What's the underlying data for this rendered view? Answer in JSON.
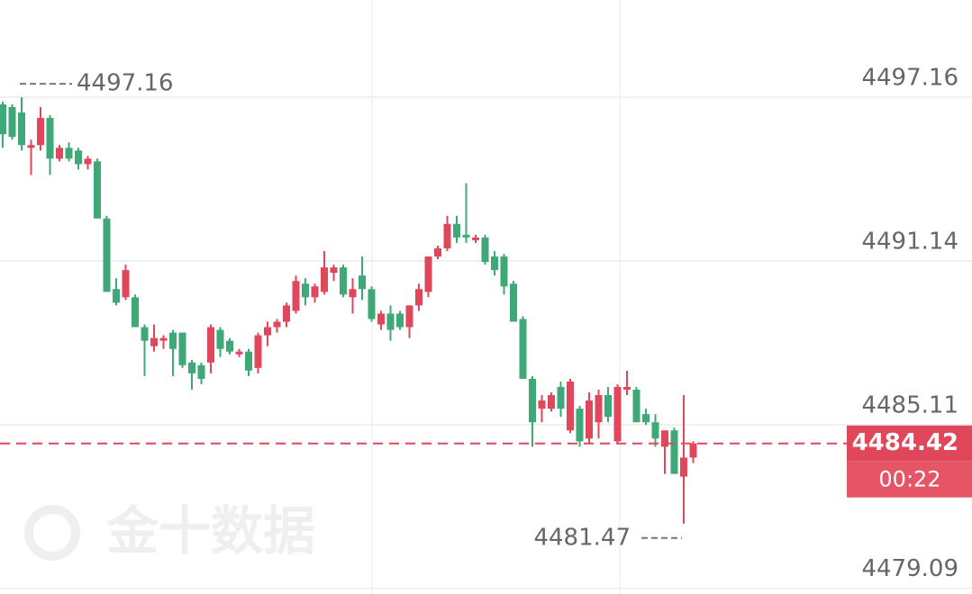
{
  "chart_data": {
    "type": "candlestick",
    "open": [
      4496.9,
      4496.8,
      4496.6,
      4495.3,
      4495.4,
      4496.4,
      4494.9,
      4495.3,
      4495.2,
      4494.7,
      4494.8,
      4492.7,
      4490.1,
      4489.8,
      4489.8,
      4488.7,
      4488.0,
      4488.2,
      4488.5,
      4488.5,
      4487.4,
      4487.3,
      4487.4,
      4488.6,
      4488.2,
      4487.7,
      4487.8,
      4487.2,
      4488.4,
      4488.7,
      4488.9,
      4489.3,
      4490.3,
      4489.8,
      4490.0,
      4490.7,
      4490.9,
      4489.8,
      4490.6,
      4490.1,
      4488.8,
      4489.2,
      4489.2,
      4488.7,
      4489.5,
      4490.0,
      4491.3,
      4491.6,
      4492.5,
      4492.1,
      4491.9,
      4492.0,
      4491.3,
      4491.3,
      4490.3,
      4489.0,
      4486.8,
      4485.7,
      4485.7,
      4486.5,
      4484.9,
      4485.7,
      4484.6,
      4485.2,
      4486.2,
      4484.5,
      4486.4,
      4486.4,
      4485.5,
      4485.2,
      4484.3,
      4484.9,
      4483.2,
      4483.9
    ],
    "high": [
      4497.0,
      4496.9,
      4497.16,
      4495.6,
      4496.8,
      4496.5,
      4495.4,
      4495.5,
      4495.3,
      4495.0,
      4494.9,
      4492.8,
      4490.5,
      4491.0,
      4489.9,
      4488.8,
      4488.8,
      4488.4,
      4488.6,
      4488.5,
      4487.5,
      4487.4,
      4488.8,
      4488.7,
      4488.3,
      4487.9,
      4487.9,
      4488.5,
      4488.9,
      4489.0,
      4489.6,
      4490.6,
      4490.5,
      4490.3,
      4491.5,
      4491.0,
      4491.0,
      4490.5,
      4491.3,
      4490.2,
      4489.3,
      4489.5,
      4489.3,
      4489.5,
      4490.3,
      4491.3,
      4491.7,
      4492.8,
      4492.8,
      4494.0,
      4492.1,
      4492.1,
      4491.5,
      4491.4,
      4490.4,
      4489.1,
      4486.9,
      4486.2,
      4486.3,
      4486.7,
      4486.8,
      4485.8,
      4486.3,
      4486.4,
      4486.5,
      4486.6,
      4487.1,
      4486.5,
      4485.7,
      4485.5,
      4484.9,
      4485.0,
      4486.2,
      4484.5
    ],
    "low": [
      4495.3,
      4495.6,
      4495.2,
      4494.3,
      4495.2,
      4494.3,
      4494.8,
      4494.8,
      4494.5,
      4494.5,
      4492.7,
      4490.0,
      4489.5,
      4489.7,
      4488.7,
      4486.9,
      4487.8,
      4487.9,
      4486.9,
      4487.2,
      4486.4,
      4486.6,
      4487.0,
      4487.6,
      4487.7,
      4487.6,
      4486.9,
      4487.0,
      4488.0,
      4488.5,
      4488.7,
      4489.2,
      4489.5,
      4489.6,
      4489.9,
      4490.4,
      4489.8,
      4489.2,
      4489.7,
      4488.9,
      4488.6,
      4488.2,
      4488.6,
      4488.3,
      4489.3,
      4489.8,
      4491.2,
      4491.5,
      4491.8,
      4491.8,
      4491.8,
      4491.0,
      4490.6,
      4489.9,
      4488.9,
      4486.8,
      4484.3,
      4485.2,
      4485.6,
      4485.4,
      4484.8,
      4484.3,
      4484.4,
      4484.6,
      4485.2,
      4484.4,
      4486.2,
      4485.2,
      4485.1,
      4484.3,
      4483.3,
      4483.3,
      4481.47,
      4483.7
    ],
    "close": [
      4495.8,
      4495.7,
      4495.4,
      4495.4,
      4496.4,
      4494.9,
      4495.3,
      4494.9,
      4494.7,
      4494.9,
      4492.7,
      4490.0,
      4489.6,
      4490.8,
      4488.7,
      4488.2,
      4488.3,
      4488.3,
      4487.9,
      4487.3,
      4487.0,
      4486.8,
      4488.7,
      4487.9,
      4487.8,
      4487.8,
      4487.1,
      4488.4,
      4488.7,
      4488.9,
      4489.5,
      4490.4,
      4489.8,
      4490.2,
      4490.9,
      4490.9,
      4489.9,
      4490.1,
      4490.1,
      4489.0,
      4489.2,
      4488.6,
      4488.7,
      4489.5,
      4490.1,
      4491.3,
      4491.6,
      4492.5,
      4492.0,
      4492.0,
      4492.0,
      4491.1,
      4490.8,
      4490.2,
      4488.9,
      4486.8,
      4485.2,
      4486.0,
      4486.2,
      4485.7,
      4486.7,
      4484.5,
      4486.0,
      4486.2,
      4485.4,
      4486.5,
      4486.5,
      4485.2,
      4485.2,
      4484.6,
      4484.9,
      4483.3,
      4483.9,
      4484.42
    ],
    "up_color": "#e0475a",
    "down_color": "#3fa877",
    "ylim": [
      4478.88,
      4500.74
    ],
    "yticks": [
      4497.16,
      4491.14,
      4485.11,
      4479.09
    ],
    "grid": true,
    "high_marker": 4497.16,
    "low_marker": 4481.47,
    "last_price": 4484.42,
    "countdown": "00:22",
    "watermark": "金十数据"
  }
}
